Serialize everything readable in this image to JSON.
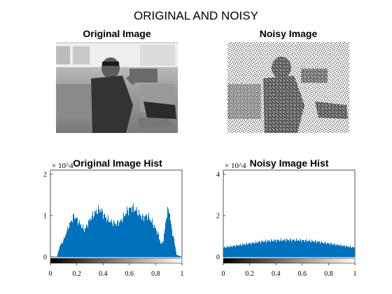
{
  "figure": {
    "super_title": "ORIGINAL AND NOISY"
  },
  "panels": {
    "original_title": "Original Image",
    "noisy_title": "Noisy Image"
  },
  "chart_data": [
    {
      "type": "bar",
      "title": "Original Image Hist",
      "xlabel": "",
      "ylabel": "",
      "y_multiplier": "× 10^4",
      "xlim": [
        0,
        1
      ],
      "ylim": [
        0,
        2.1
      ],
      "x_ticks": [
        "0",
        "0.2",
        "0.4",
        "0.6",
        "0.8",
        "1"
      ],
      "y_ticks": [
        "0",
        "1",
        "2"
      ],
      "colorbar": "grayscale 0 to 1",
      "grid": false,
      "series": [
        {
          "x": [
            0.0,
            0.05,
            0.07,
            0.1,
            0.14,
            0.18,
            0.22,
            0.26,
            0.3,
            0.34,
            0.38,
            0.42,
            0.46,
            0.5,
            0.54,
            0.58,
            0.62,
            0.66,
            0.7,
            0.74,
            0.78,
            0.82,
            0.84,
            0.86,
            0.88,
            0.9,
            0.92,
            0.94,
            0.96,
            1.0
          ],
          "values": [
            0.0,
            0.0,
            0.25,
            0.4,
            0.75,
            1.0,
            0.82,
            0.65,
            0.9,
            1.08,
            1.15,
            0.95,
            0.85,
            0.8,
            0.88,
            1.1,
            1.2,
            1.1,
            0.95,
            1.0,
            0.8,
            0.55,
            0.3,
            0.4,
            0.95,
            1.2,
            0.7,
            0.4,
            0.05,
            0.0
          ],
          "color": "#0072BD"
        }
      ]
    },
    {
      "type": "bar",
      "title": "Noisy Image Hist",
      "xlabel": "",
      "ylabel": "",
      "y_multiplier": "× 10^4",
      "xlim": [
        0,
        1
      ],
      "ylim": [
        0,
        4.2
      ],
      "x_ticks": [
        "0",
        "0.2",
        "0.4",
        "0.6",
        "0.8",
        "1"
      ],
      "y_ticks": [
        "0",
        "2",
        "4"
      ],
      "colorbar": "grayscale 0 to 1",
      "grid": false,
      "series": [
        {
          "x": [
            0.0,
            0.1,
            0.2,
            0.3,
            0.4,
            0.5,
            0.6,
            0.7,
            0.8,
            0.9,
            1.0
          ],
          "values": [
            0.45,
            0.55,
            0.65,
            0.75,
            0.8,
            0.82,
            0.8,
            0.75,
            0.65,
            0.55,
            0.45
          ],
          "color": "#0072BD"
        }
      ]
    }
  ]
}
